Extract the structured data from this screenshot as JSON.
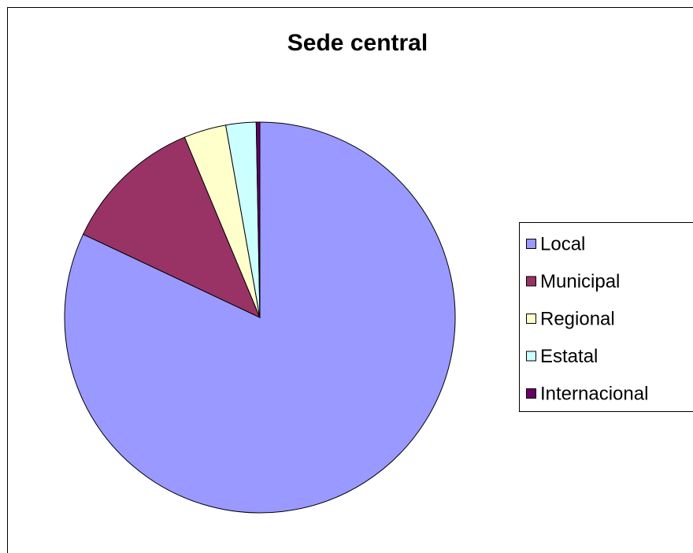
{
  "chart_data": {
    "type": "pie",
    "title": "Sede central",
    "categories": [
      "Local",
      "Municipal",
      "Regional",
      "Estatal",
      "Internacional"
    ],
    "values": [
      82,
      11.7,
      3.5,
      2.5,
      0.3
    ],
    "colors": [
      "#9999ff",
      "#993366",
      "#ffffcc",
      "#ccffff",
      "#660066"
    ],
    "legend": "right"
  }
}
